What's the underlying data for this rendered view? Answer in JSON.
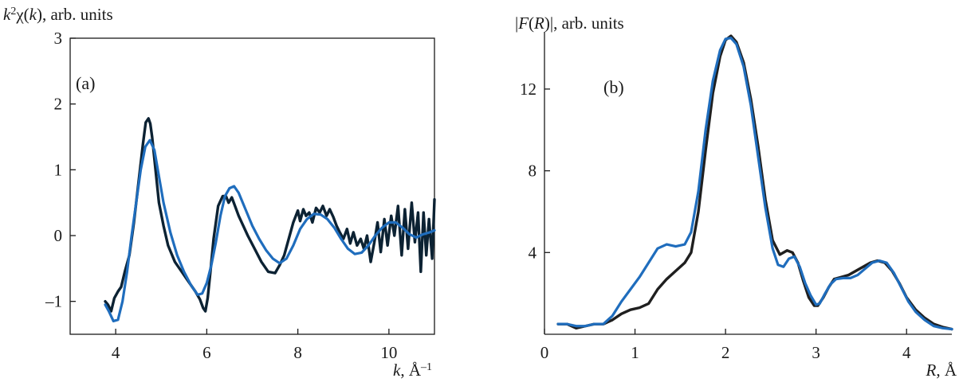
{
  "chart_data": [
    {
      "type": "line",
      "panel_label": "(a)",
      "ylabel": "k²χ(k), arb. units",
      "xlabel": "k, Å⁻¹",
      "xlim": [
        3,
        11
      ],
      "ylim": [
        -1.5,
        3
      ],
      "xticks": [
        4,
        6,
        8,
        10
      ],
      "yticks": [
        -1,
        0,
        1,
        2,
        3
      ],
      "ytick_labels": [
        "–1",
        "0",
        "1",
        "2",
        "3"
      ],
      "series": [
        {
          "color": "#0c2233",
          "x": [
            3.77,
            3.83,
            3.9,
            3.97,
            4.05,
            4.12,
            4.2,
            4.3,
            4.4,
            4.5,
            4.6,
            4.66,
            4.72,
            4.76,
            4.8,
            4.86,
            4.95,
            5.05,
            5.15,
            5.3,
            5.45,
            5.6,
            5.75,
            5.85,
            5.92,
            5.97,
            6.02,
            6.08,
            6.15,
            6.25,
            6.35,
            6.42,
            6.48,
            6.55,
            6.62,
            6.7,
            6.8,
            6.9,
            7.05,
            7.2,
            7.35,
            7.5,
            7.6,
            7.7,
            7.8,
            7.9,
            8.0,
            8.05,
            8.12,
            8.18,
            8.25,
            8.32,
            8.4,
            8.48,
            8.55,
            8.63,
            8.7,
            8.78,
            8.85,
            8.92,
            9.0,
            9.08,
            9.15,
            9.22,
            9.3,
            9.38,
            9.45,
            9.52,
            9.6,
            9.68,
            9.75,
            9.82,
            9.9,
            9.97,
            10.05,
            10.12,
            10.2,
            10.28,
            10.35,
            10.42,
            10.5,
            10.57,
            10.64,
            10.7,
            10.76,
            10.82,
            10.88,
            10.95,
            11.0
          ],
          "y": [
            -1.0,
            -1.05,
            -1.15,
            -0.95,
            -0.85,
            -0.78,
            -0.55,
            -0.3,
            0.2,
            0.8,
            1.4,
            1.72,
            1.78,
            1.7,
            1.5,
            1.1,
            0.5,
            0.15,
            -0.15,
            -0.4,
            -0.55,
            -0.7,
            -0.85,
            -0.97,
            -1.1,
            -1.15,
            -0.95,
            -0.55,
            -0.05,
            0.45,
            0.6,
            0.6,
            0.5,
            0.58,
            0.45,
            0.3,
            0.15,
            0.0,
            -0.2,
            -0.4,
            -0.55,
            -0.57,
            -0.45,
            -0.3,
            -0.05,
            0.2,
            0.38,
            0.22,
            0.4,
            0.3,
            0.35,
            0.2,
            0.42,
            0.35,
            0.45,
            0.3,
            0.4,
            0.28,
            0.15,
            0.05,
            -0.05,
            0.1,
            -0.12,
            0.05,
            -0.15,
            -0.05,
            -0.2,
            0.0,
            -0.4,
            -0.1,
            0.2,
            -0.25,
            0.25,
            -0.15,
            0.3,
            0.0,
            0.45,
            -0.3,
            0.4,
            -0.2,
            0.5,
            -0.1,
            0.35,
            -0.55,
            0.35,
            -0.3,
            0.25,
            -0.35,
            0.55
          ]
        },
        {
          "color": "#1f6dbd",
          "x": [
            3.77,
            3.85,
            3.95,
            4.05,
            4.15,
            4.25,
            4.35,
            4.45,
            4.55,
            4.65,
            4.75,
            4.85,
            4.95,
            5.05,
            5.2,
            5.35,
            5.5,
            5.65,
            5.8,
            5.9,
            6.0,
            6.1,
            6.2,
            6.3,
            6.4,
            6.5,
            6.6,
            6.7,
            6.85,
            7.0,
            7.15,
            7.3,
            7.45,
            7.6,
            7.75,
            7.9,
            8.05,
            8.2,
            8.35,
            8.5,
            8.65,
            8.8,
            8.95,
            9.1,
            9.25,
            9.4,
            9.55,
            9.7,
            9.85,
            10.0,
            10.15,
            10.3,
            10.45,
            10.6,
            10.75,
            10.9,
            11.0
          ],
          "y": [
            -1.05,
            -1.15,
            -1.3,
            -1.28,
            -1.0,
            -0.55,
            0.0,
            0.5,
            1.0,
            1.35,
            1.45,
            1.3,
            0.9,
            0.5,
            0.05,
            -0.3,
            -0.55,
            -0.75,
            -0.9,
            -0.88,
            -0.72,
            -0.45,
            -0.1,
            0.3,
            0.6,
            0.72,
            0.75,
            0.65,
            0.4,
            0.15,
            -0.05,
            -0.22,
            -0.35,
            -0.42,
            -0.35,
            -0.15,
            0.1,
            0.25,
            0.33,
            0.32,
            0.25,
            0.12,
            -0.05,
            -0.2,
            -0.28,
            -0.26,
            -0.15,
            0.0,
            0.12,
            0.2,
            0.2,
            0.12,
            0.02,
            -0.03,
            0.02,
            0.05,
            0.08
          ]
        }
      ]
    },
    {
      "type": "line",
      "panel_label": "(b)",
      "ylabel": "|F(R)|, arb. units",
      "xlabel": "R, Å",
      "xlim": [
        0,
        4.5
      ],
      "ylim": [
        0,
        14.8
      ],
      "xticks": [
        0,
        1,
        2,
        3,
        4
      ],
      "yticks": [
        4,
        8,
        12
      ],
      "ytick_labels": [
        "4",
        "8",
        "12"
      ],
      "series": [
        {
          "color": "#1f1f1f",
          "x": [
            0.15,
            0.25,
            0.35,
            0.45,
            0.55,
            0.65,
            0.75,
            0.85,
            0.95,
            1.05,
            1.15,
            1.25,
            1.35,
            1.45,
            1.55,
            1.62,
            1.7,
            1.78,
            1.86,
            1.94,
            2.0,
            2.06,
            2.12,
            2.2,
            2.28,
            2.36,
            2.44,
            2.52,
            2.6,
            2.68,
            2.74,
            2.8,
            2.86,
            2.92,
            2.98,
            3.02,
            3.08,
            3.14,
            3.2,
            3.28,
            3.36,
            3.44,
            3.52,
            3.6,
            3.68,
            3.76,
            3.84,
            3.92,
            4.0,
            4.1,
            4.2,
            4.3,
            4.4,
            4.5
          ],
          "y": [
            0.5,
            0.5,
            0.3,
            0.4,
            0.5,
            0.5,
            0.7,
            1.0,
            1.2,
            1.3,
            1.5,
            2.2,
            2.7,
            3.1,
            3.5,
            4.0,
            6.0,
            9.0,
            11.8,
            13.6,
            14.4,
            14.6,
            14.3,
            13.3,
            11.5,
            9.2,
            6.6,
            4.6,
            3.9,
            4.1,
            4.0,
            3.5,
            2.6,
            1.8,
            1.4,
            1.4,
            1.8,
            2.3,
            2.7,
            2.8,
            2.9,
            3.1,
            3.3,
            3.5,
            3.6,
            3.5,
            3.1,
            2.5,
            1.8,
            1.2,
            0.8,
            0.5,
            0.35,
            0.25
          ]
        },
        {
          "color": "#1f6dbd",
          "x": [
            0.15,
            0.25,
            0.35,
            0.45,
            0.55,
            0.65,
            0.75,
            0.85,
            0.95,
            1.05,
            1.15,
            1.25,
            1.35,
            1.45,
            1.55,
            1.62,
            1.7,
            1.78,
            1.86,
            1.94,
            2.0,
            2.06,
            2.12,
            2.2,
            2.28,
            2.36,
            2.44,
            2.52,
            2.58,
            2.64,
            2.7,
            2.76,
            2.82,
            2.88,
            2.94,
            3.0,
            3.04,
            3.1,
            3.16,
            3.22,
            3.3,
            3.38,
            3.46,
            3.54,
            3.62,
            3.7,
            3.78,
            3.86,
            3.94,
            4.02,
            4.1,
            4.2,
            4.3,
            4.4,
            4.5
          ],
          "y": [
            0.5,
            0.5,
            0.4,
            0.4,
            0.5,
            0.5,
            0.9,
            1.6,
            2.2,
            2.8,
            3.5,
            4.2,
            4.4,
            4.3,
            4.4,
            5.0,
            7.0,
            10.0,
            12.4,
            13.9,
            14.45,
            14.5,
            14.2,
            13.1,
            11.2,
            8.7,
            6.2,
            4.2,
            3.4,
            3.3,
            3.7,
            3.8,
            3.3,
            2.5,
            1.9,
            1.45,
            1.5,
            2.0,
            2.45,
            2.7,
            2.75,
            2.75,
            2.9,
            3.2,
            3.5,
            3.6,
            3.5,
            3.0,
            2.3,
            1.6,
            1.1,
            0.7,
            0.4,
            0.3,
            0.25
          ]
        }
      ]
    }
  ]
}
